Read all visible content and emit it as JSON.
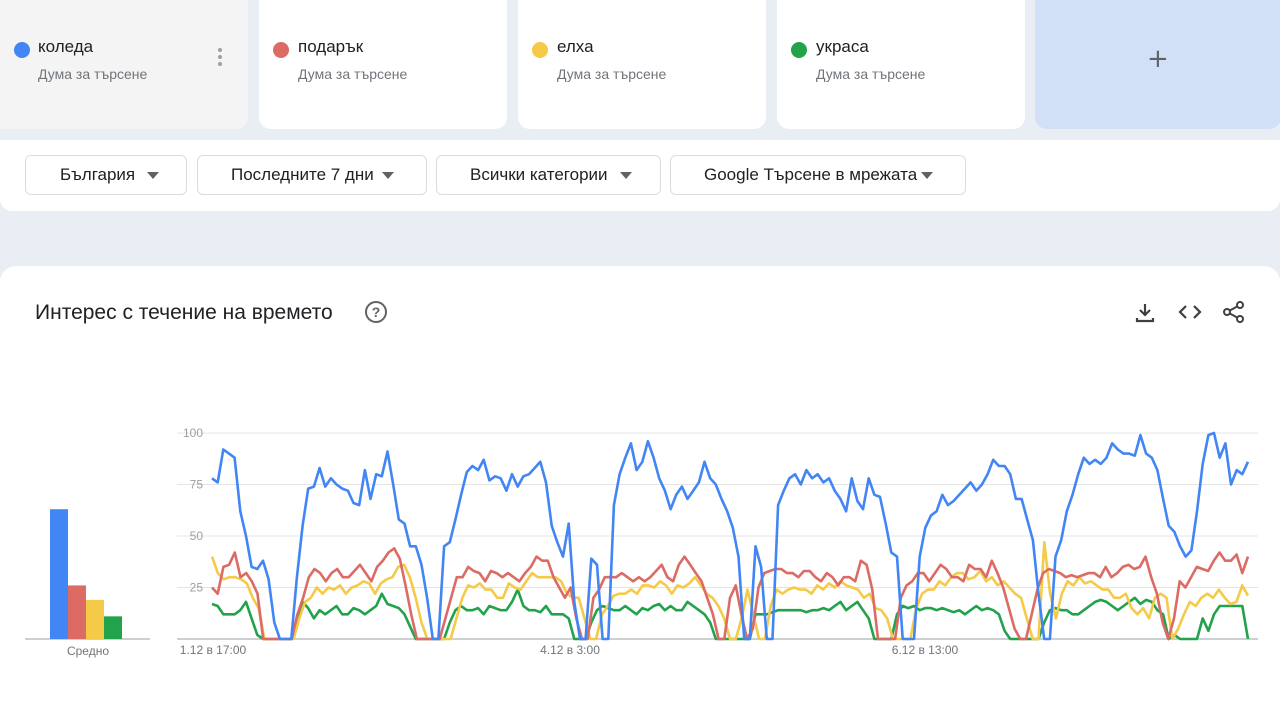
{
  "terms": [
    {
      "name": "коледа",
      "subtitle": "Дума за търсене",
      "color": "#4285f4"
    },
    {
      "name": "подарък",
      "subtitle": "Дума за търсене",
      "color": "#db6b64"
    },
    {
      "name": "елха",
      "subtitle": "Дума за търсене",
      "color": "#f5ca48"
    },
    {
      "name": "украса",
      "subtitle": "Дума за търсене",
      "color": "#22a24b"
    }
  ],
  "add_label": "+",
  "filters": {
    "region": "България",
    "period": "Последните 7 дни",
    "category": "Всички категории",
    "property": "Google Търсене в мрежата"
  },
  "section": {
    "title": "Интерес с течение на времето",
    "help": "?",
    "icons": [
      "download-icon",
      "embed-icon",
      "share-icon"
    ]
  },
  "chart_data": {
    "type": "line",
    "ylim": [
      0,
      100
    ],
    "yticks": [
      25,
      50,
      75,
      100
    ],
    "grid": true,
    "legend": "none",
    "x_tick_labels": [
      "1.12 в 17:00",
      "4.12 в 3:00",
      "6.12 в 13:00"
    ],
    "average_label": "Средно",
    "averages": [
      63,
      26,
      19,
      11
    ],
    "series": [
      {
        "name": "коледа",
        "color": "#4285f4",
        "values": [
          78,
          76,
          92,
          90,
          88,
          62,
          50,
          35,
          34,
          38,
          29,
          8,
          0,
          0,
          0,
          30,
          55,
          73,
          74,
          83,
          74,
          78,
          75,
          73,
          72,
          66,
          65,
          82,
          68,
          80,
          79,
          91,
          75,
          58,
          56,
          45,
          45,
          36,
          20,
          0,
          0,
          45,
          47,
          58,
          70,
          81,
          84,
          82,
          87,
          77,
          79,
          78,
          72,
          80,
          74,
          79,
          80,
          83,
          86,
          76,
          55,
          47,
          40,
          56,
          18,
          0,
          0,
          39,
          36,
          0,
          0,
          65,
          80,
          88,
          95,
          82,
          86,
          96,
          88,
          78,
          72,
          63,
          70,
          74,
          68,
          72,
          76,
          86,
          78,
          75,
          68,
          62,
          54,
          40,
          0,
          0,
          45,
          35,
          0,
          0,
          65,
          72,
          78,
          80,
          75,
          82,
          78,
          80,
          76,
          78,
          72,
          68,
          62,
          78,
          67,
          63,
          78,
          70,
          69,
          56,
          42,
          40,
          0,
          0,
          0,
          40,
          54,
          60,
          62,
          70,
          65,
          67,
          70,
          73,
          76,
          72,
          75,
          80,
          87,
          84,
          84,
          80,
          68,
          68,
          58,
          48,
          22,
          0,
          0,
          40,
          48,
          62,
          70,
          80,
          88,
          85,
          87,
          85,
          88,
          95,
          92,
          90,
          90,
          89,
          99,
          90,
          88,
          82,
          68,
          55,
          52,
          45,
          40,
          43,
          62,
          85,
          99,
          100,
          88,
          95,
          75,
          82,
          80,
          86
        ]
      },
      {
        "name": "подарък",
        "color": "#db6b64",
        "values": [
          25,
          22,
          35,
          36,
          42,
          30,
          32,
          28,
          22,
          0,
          0,
          0,
          0,
          0,
          0,
          12,
          20,
          30,
          34,
          32,
          28,
          32,
          34,
          30,
          30,
          33,
          36,
          32,
          28,
          35,
          38,
          42,
          44,
          39,
          26,
          12,
          0,
          0,
          0,
          0,
          0,
          10,
          20,
          30,
          30,
          35,
          33,
          32,
          28,
          33,
          32,
          30,
          32,
          30,
          28,
          32,
          35,
          40,
          38,
          38,
          30,
          25,
          20,
          25,
          10,
          0,
          0,
          20,
          24,
          30,
          30,
          30,
          32,
          30,
          28,
          30,
          28,
          30,
          33,
          36,
          30,
          28,
          36,
          40,
          36,
          32,
          28,
          20,
          12,
          0,
          0,
          20,
          26,
          12,
          0,
          5,
          25,
          32,
          33,
          34,
          34,
          32,
          32,
          30,
          33,
          33,
          30,
          28,
          32,
          30,
          26,
          30,
          30,
          28,
          38,
          36,
          24,
          0,
          0,
          0,
          0,
          20,
          26,
          28,
          32,
          32,
          28,
          32,
          36,
          34,
          30,
          30,
          28,
          36,
          34,
          34,
          30,
          38,
          32,
          25,
          15,
          5,
          0,
          0,
          12,
          24,
          32,
          34,
          33,
          32,
          30,
          31,
          30,
          31,
          32,
          32,
          30,
          35,
          30,
          32,
          35,
          36,
          34,
          35,
          40,
          30,
          22,
          8,
          0,
          10,
          28,
          25,
          30,
          35,
          34,
          33,
          38,
          42,
          38,
          38,
          41,
          32,
          40
        ]
      },
      {
        "name": "елха",
        "color": "#f5ca48",
        "values": [
          40,
          32,
          29,
          30,
          30,
          29,
          27,
          20,
          15,
          0,
          0,
          0,
          0,
          0,
          0,
          10,
          18,
          20,
          25,
          22,
          25,
          24,
          26,
          22,
          25,
          26,
          28,
          27,
          22,
          27,
          29,
          30,
          35,
          36,
          30,
          20,
          8,
          0,
          0,
          0,
          0,
          0,
          10,
          20,
          26,
          25,
          27,
          24,
          24,
          20,
          20,
          27,
          25,
          24,
          28,
          32,
          30,
          30,
          30,
          30,
          28,
          22,
          20,
          20,
          10,
          0,
          0,
          12,
          16,
          21,
          22,
          22,
          24,
          22,
          26,
          26,
          25,
          28,
          26,
          22,
          26,
          25,
          27,
          30,
          26,
          22,
          20,
          16,
          10,
          0,
          0,
          10,
          24,
          12,
          0,
          0,
          16,
          24,
          22,
          24,
          25,
          24,
          24,
          22,
          26,
          24,
          27,
          25,
          28,
          26,
          25,
          24,
          20,
          22,
          15,
          14,
          10,
          0,
          0,
          0,
          0,
          15,
          22,
          24,
          24,
          28,
          26,
          30,
          32,
          32,
          29,
          30,
          33,
          28,
          30,
          26,
          28,
          25,
          22,
          20,
          10,
          0,
          0,
          47,
          22,
          10,
          22,
          28,
          26,
          30,
          27,
          28,
          26,
          24,
          24,
          20,
          20,
          22,
          15,
          12,
          15,
          10,
          20,
          22,
          20,
          0,
          5,
          12,
          18,
          16,
          20,
          22,
          20,
          24,
          20,
          17,
          18,
          26,
          21
        ]
      },
      {
        "name": "украса",
        "color": "#22a24b",
        "values": [
          17,
          16,
          12,
          12,
          12,
          14,
          18,
          10,
          2,
          0,
          0,
          0,
          0,
          0,
          0,
          10,
          18,
          15,
          10,
          14,
          12,
          14,
          16,
          12,
          12,
          15,
          14,
          12,
          14,
          16,
          22,
          17,
          16,
          15,
          12,
          6,
          0,
          0,
          0,
          0,
          0,
          0,
          8,
          14,
          16,
          14,
          14,
          15,
          12,
          16,
          15,
          14,
          14,
          18,
          24,
          16,
          14,
          14,
          13,
          16,
          12,
          12,
          12,
          10,
          0,
          0,
          0,
          8,
          14,
          16,
          15,
          14,
          14,
          16,
          14,
          12,
          15,
          14,
          16,
          17,
          14,
          16,
          14,
          14,
          18,
          16,
          14,
          12,
          8,
          0,
          0,
          0,
          0,
          0,
          0,
          0,
          12,
          12,
          12,
          13,
          14,
          14,
          14,
          14,
          14,
          13,
          14,
          14,
          15,
          14,
          16,
          18,
          14,
          16,
          18,
          14,
          10,
          0,
          0,
          0,
          0,
          12,
          16,
          15,
          16,
          14,
          15,
          15,
          14,
          15,
          14,
          13,
          14,
          12,
          14,
          16,
          14,
          15,
          14,
          12,
          4,
          0,
          0,
          0,
          0,
          0,
          0,
          8,
          14,
          15,
          14,
          14,
          12,
          12,
          14,
          16,
          18,
          19,
          18,
          16,
          14,
          16,
          18,
          20,
          17,
          19,
          18,
          14,
          12,
          0,
          2,
          0,
          0,
          0,
          0,
          10,
          4,
          12,
          16,
          16,
          16,
          16,
          16,
          0
        ]
      }
    ]
  }
}
